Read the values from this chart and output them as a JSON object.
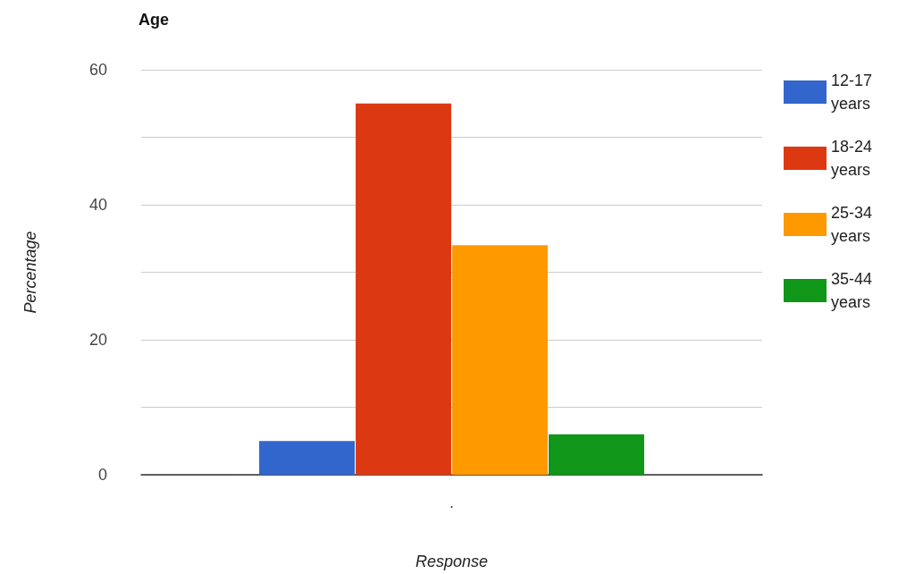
{
  "chart_data": {
    "type": "bar",
    "title": "Age",
    "xlabel": "Response",
    "ylabel": "Percentage",
    "categories": [
      "."
    ],
    "series": [
      {
        "name": "12-17 years",
        "color": "#3366cc",
        "values": [
          5
        ]
      },
      {
        "name": "18-24 years",
        "color": "#dc3912",
        "values": [
          55
        ]
      },
      {
        "name": "25-34 years",
        "color": "#ff9900",
        "values": [
          34
        ]
      },
      {
        "name": "35-44 years",
        "color": "#109618",
        "values": [
          6
        ]
      }
    ],
    "ylim": [
      0,
      60
    ],
    "yticks": [
      0,
      {
        "value": 10,
        "label": null
      },
      20,
      {
        "value": 30,
        "label": null
      },
      40,
      {
        "value": 50,
        "label": null
      },
      60
    ],
    "grid": true,
    "legend": "right"
  }
}
